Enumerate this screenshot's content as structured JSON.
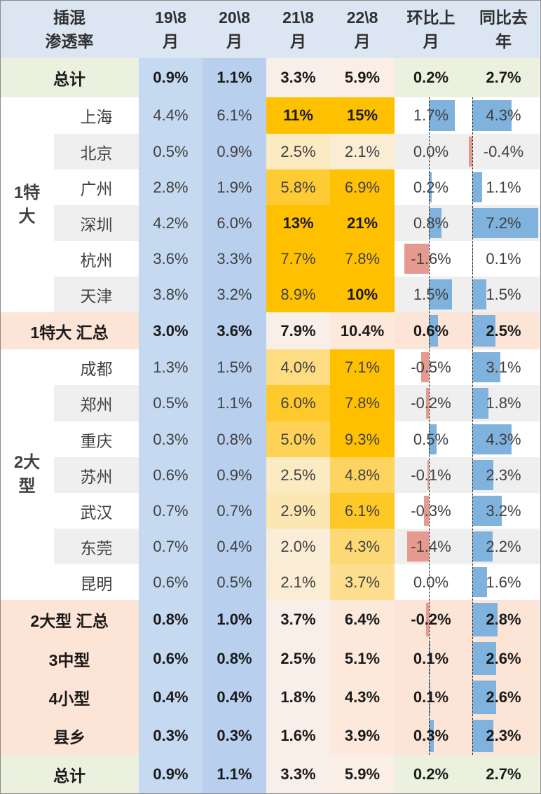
{
  "header": {
    "corner": "插混\n渗透率",
    "columns": [
      "19\\8\n月",
      "20\\8\n月",
      "21\\8\n月",
      "22\\8\n月",
      "环比上\n月",
      "同比去\n年"
    ]
  },
  "groups": [
    {
      "label": "1特\n大",
      "color": "#404040"
    },
    {
      "label": "2大\n型",
      "color": "#404040"
    }
  ],
  "rows": [
    {
      "name": "总计",
      "kind": "total",
      "vals": [
        "0.9%",
        "1.1%",
        "3.3%",
        "5.9%",
        "0.2%",
        "2.7%"
      ],
      "mom": 0.2,
      "yoy": 2.7
    },
    {
      "name": "上海",
      "kind": "city",
      "group": 0,
      "vals": [
        "4.4%",
        "6.1%",
        "11%",
        "15%",
        "1.7%",
        "4.3%"
      ],
      "mom": 1.7,
      "yoy": 4.3
    },
    {
      "name": "北京",
      "kind": "city",
      "group": 0,
      "vals": [
        "0.5%",
        "0.9%",
        "2.5%",
        "2.1%",
        "0.0%",
        "-0.4%"
      ],
      "mom": 0.0,
      "yoy": -0.4
    },
    {
      "name": "广州",
      "kind": "city",
      "group": 0,
      "vals": [
        "2.8%",
        "1.9%",
        "5.8%",
        "6.9%",
        "0.2%",
        "1.1%"
      ],
      "mom": 0.2,
      "yoy": 1.1
    },
    {
      "name": "深圳",
      "kind": "city",
      "group": 0,
      "vals": [
        "4.2%",
        "6.0%",
        "13%",
        "21%",
        "0.8%",
        "7.2%"
      ],
      "mom": 0.8,
      "yoy": 7.2
    },
    {
      "name": "杭州",
      "kind": "city",
      "group": 0,
      "vals": [
        "3.6%",
        "3.3%",
        "7.7%",
        "7.8%",
        "-1.6%",
        "0.1%"
      ],
      "mom": -1.6,
      "yoy": 0.1
    },
    {
      "name": "天津",
      "kind": "city",
      "group": 0,
      "vals": [
        "3.8%",
        "3.2%",
        "8.9%",
        "10%",
        "1.5%",
        "1.5%"
      ],
      "mom": 1.5,
      "yoy": 1.5
    },
    {
      "name": "1特大 汇总",
      "kind": "subtotal",
      "vals": [
        "3.0%",
        "3.6%",
        "7.9%",
        "10.4%",
        "0.6%",
        "2.5%"
      ],
      "mom": 0.6,
      "yoy": 2.5
    },
    {
      "name": "成都",
      "kind": "city",
      "group": 1,
      "vals": [
        "1.3%",
        "1.5%",
        "4.0%",
        "7.1%",
        "-0.5%",
        "3.1%"
      ],
      "mom": -0.5,
      "yoy": 3.1
    },
    {
      "name": "郑州",
      "kind": "city",
      "group": 1,
      "vals": [
        "0.5%",
        "1.1%",
        "6.0%",
        "7.8%",
        "-0.2%",
        "1.8%"
      ],
      "mom": -0.2,
      "yoy": 1.8
    },
    {
      "name": "重庆",
      "kind": "city",
      "group": 1,
      "vals": [
        "0.3%",
        "0.8%",
        "5.0%",
        "9.3%",
        "0.5%",
        "4.3%"
      ],
      "mom": 0.5,
      "yoy": 4.3
    },
    {
      "name": "苏州",
      "kind": "city",
      "group": 1,
      "vals": [
        "0.6%",
        "0.9%",
        "2.5%",
        "4.8%",
        "-0.1%",
        "2.3%"
      ],
      "mom": -0.1,
      "yoy": 2.3
    },
    {
      "name": "武汉",
      "kind": "city",
      "group": 1,
      "vals": [
        "0.7%",
        "0.7%",
        "2.9%",
        "6.1%",
        "-0.3%",
        "3.2%"
      ],
      "mom": -0.3,
      "yoy": 3.2
    },
    {
      "name": "东莞",
      "kind": "city",
      "group": 1,
      "vals": [
        "0.7%",
        "0.4%",
        "2.0%",
        "4.3%",
        "-1.4%",
        "2.2%"
      ],
      "mom": -1.4,
      "yoy": 2.2
    },
    {
      "name": "昆明",
      "kind": "city",
      "group": 1,
      "vals": [
        "0.6%",
        "0.5%",
        "2.1%",
        "3.7%",
        "0.0%",
        "1.6%"
      ],
      "mom": 0.0,
      "yoy": 1.6
    },
    {
      "name": "2大型 汇总",
      "kind": "subtotal",
      "vals": [
        "0.8%",
        "1.0%",
        "3.7%",
        "6.4%",
        "-0.2%",
        "2.8%"
      ],
      "mom": -0.2,
      "yoy": 2.8
    },
    {
      "name": "3中型",
      "kind": "subtotal",
      "vals": [
        "0.6%",
        "0.8%",
        "2.5%",
        "5.1%",
        "0.1%",
        "2.6%"
      ],
      "mom": 0.1,
      "yoy": 2.6
    },
    {
      "name": "4小型",
      "kind": "subtotal",
      "vals": [
        "0.4%",
        "0.4%",
        "1.8%",
        "4.3%",
        "0.1%",
        "2.6%"
      ],
      "mom": 0.1,
      "yoy": 2.6
    },
    {
      "name": "县乡",
      "kind": "subtotal",
      "vals": [
        "0.3%",
        "0.3%",
        "1.6%",
        "3.9%",
        "0.3%",
        "2.3%"
      ],
      "mom": 0.3,
      "yoy": 2.3
    },
    {
      "name": "总计",
      "kind": "total",
      "vals": [
        "0.9%",
        "1.1%",
        "3.3%",
        "5.9%",
        "0.2%",
        "2.7%"
      ],
      "mom": 0.2,
      "yoy": 2.7
    }
  ],
  "colors": {
    "header_bg": "#dce6f2",
    "total_bg": "#ebf1de",
    "subtotal_bg": "#fce4d6",
    "city_stripe": "#efefef",
    "blue_col": "#c5d9f1",
    "blue_col_b": "#b8cfee",
    "bar_pos": "#7fb2dc",
    "bar_neg": "#e69a8f",
    "heat_low": "#fbf3ee",
    "heat_high": "#ffc000"
  },
  "chart_data": {
    "type": "table",
    "title": "插混渗透率",
    "columns": [
      "19\\8月",
      "20\\8月",
      "21\\8月",
      "22\\8月",
      "环比上月",
      "同比去年"
    ],
    "row_labels": [
      "总计",
      "上海",
      "北京",
      "广州",
      "深圳",
      "杭州",
      "天津",
      "1特大 汇总",
      "成都",
      "郑州",
      "重庆",
      "苏州",
      "武汉",
      "东莞",
      "昆明",
      "2大型 汇总",
      "3中型",
      "4小型",
      "县乡",
      "总计"
    ],
    "groups": {
      "1特大": [
        "上海",
        "北京",
        "广州",
        "深圳",
        "杭州",
        "天津"
      ],
      "2大型": [
        "成都",
        "郑州",
        "重庆",
        "苏州",
        "武汉",
        "东莞",
        "昆明"
      ]
    },
    "values": [
      [
        0.9,
        1.1,
        3.3,
        5.9,
        0.2,
        2.7
      ],
      [
        4.4,
        6.1,
        11,
        15,
        1.7,
        4.3
      ],
      [
        0.5,
        0.9,
        2.5,
        2.1,
        0.0,
        -0.4
      ],
      [
        2.8,
        1.9,
        5.8,
        6.9,
        0.2,
        1.1
      ],
      [
        4.2,
        6.0,
        13,
        21,
        0.8,
        7.2
      ],
      [
        3.6,
        3.3,
        7.7,
        7.8,
        -1.6,
        0.1
      ],
      [
        3.8,
        3.2,
        8.9,
        10,
        1.5,
        1.5
      ],
      [
        3.0,
        3.6,
        7.9,
        10.4,
        0.6,
        2.5
      ],
      [
        1.3,
        1.5,
        4.0,
        7.1,
        -0.5,
        3.1
      ],
      [
        0.5,
        1.1,
        6.0,
        7.8,
        -0.2,
        1.8
      ],
      [
        0.3,
        0.8,
        5.0,
        9.3,
        0.5,
        4.3
      ],
      [
        0.6,
        0.9,
        2.5,
        4.8,
        -0.1,
        2.3
      ],
      [
        0.7,
        0.7,
        2.9,
        6.1,
        -0.3,
        3.2
      ],
      [
        0.7,
        0.4,
        2.0,
        4.3,
        -1.4,
        2.2
      ],
      [
        0.6,
        0.5,
        2.1,
        3.7,
        0.0,
        1.6
      ],
      [
        0.8,
        1.0,
        3.7,
        6.4,
        -0.2,
        2.8
      ],
      [
        0.6,
        0.8,
        2.5,
        5.1,
        0.1,
        2.6
      ],
      [
        0.4,
        0.4,
        1.8,
        4.3,
        0.1,
        2.6
      ],
      [
        0.3,
        0.3,
        1.6,
        3.9,
        0.3,
        2.3
      ],
      [
        0.9,
        1.1,
        3.3,
        5.9,
        0.2,
        2.7
      ]
    ],
    "unit": "%"
  }
}
